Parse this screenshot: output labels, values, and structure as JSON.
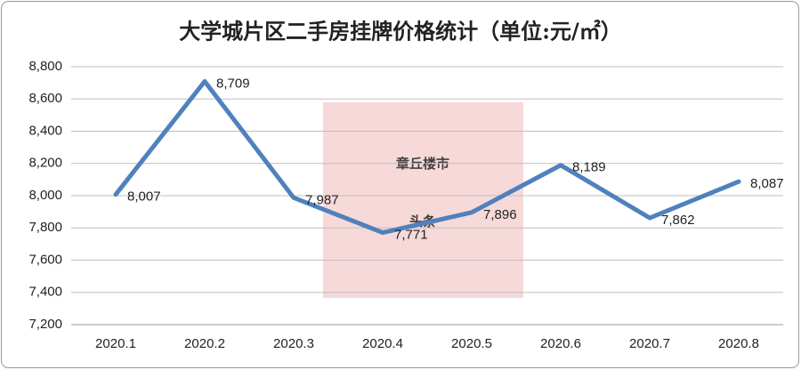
{
  "chart_data": {
    "type": "line",
    "title": "大学城片区二手房挂牌价格统计（单位:元/㎡）",
    "categories": [
      "2020.1",
      "2020.2",
      "2020.3",
      "2020.4",
      "2020.5",
      "2020.6",
      "2020.7",
      "2020.8"
    ],
    "values": [
      8007,
      8709,
      7987,
      7771,
      7896,
      8189,
      7862,
      8087
    ],
    "value_labels": [
      "8,007",
      "8,709",
      "7,987",
      "7,771",
      "7,896",
      "8,189",
      "7,862",
      "8,087"
    ],
    "color": "#4f81bd",
    "ylim": [
      7200,
      8800
    ],
    "yticks": [
      {
        "value": 7200,
        "label": "7,200"
      },
      {
        "value": 7400,
        "label": "7,400"
      },
      {
        "value": 7600,
        "label": "7,600"
      },
      {
        "value": 7800,
        "label": "7,800"
      },
      {
        "value": 8000,
        "label": "8,000"
      },
      {
        "value": 8200,
        "label": "8,200"
      },
      {
        "value": 8400,
        "label": "8,400"
      },
      {
        "value": 8600,
        "label": "8,600"
      },
      {
        "value": 8800,
        "label": "8,800"
      }
    ],
    "grid": true,
    "watermark": [
      "章丘楼市",
      "头条"
    ]
  }
}
